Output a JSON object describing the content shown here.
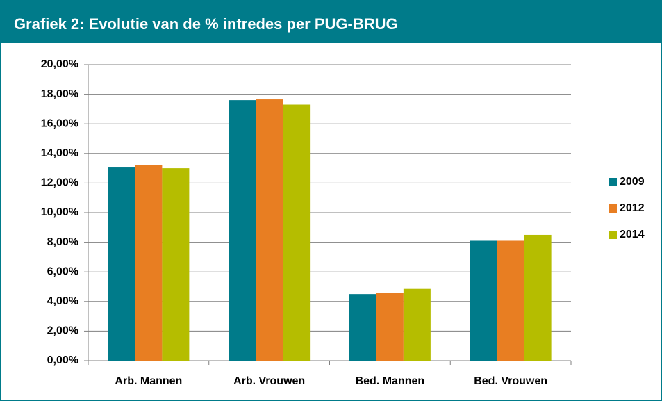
{
  "chart_data": {
    "type": "bar",
    "title": "Grafiek 2: Evolutie van de % intredes per PUG-BRUG",
    "categories": [
      "Arb. Mannen",
      "Arb. Vrouwen",
      "Bed. Mannen",
      "Bed. Vrouwen"
    ],
    "series": [
      {
        "name": "2009",
        "color": "#007b8a",
        "values": [
          13.05,
          17.6,
          4.5,
          8.1
        ]
      },
      {
        "name": "2012",
        "color": "#e87e22",
        "values": [
          13.2,
          17.65,
          4.6,
          8.1
        ]
      },
      {
        "name": "2014",
        "color": "#b5bd00",
        "values": [
          13.0,
          17.3,
          4.85,
          8.5
        ]
      }
    ],
    "ylim": [
      0,
      20
    ],
    "yticks": [
      {
        "value": 0,
        "label": "0,00%"
      },
      {
        "value": 2,
        "label": "2,00%"
      },
      {
        "value": 4,
        "label": "4,00%"
      },
      {
        "value": 6,
        "label": "6,00%"
      },
      {
        "value": 8,
        "label": "8,00%"
      },
      {
        "value": 10,
        "label": "10,00%"
      },
      {
        "value": 12,
        "label": "12,00%"
      },
      {
        "value": 14,
        "label": "14,00%"
      },
      {
        "value": 16,
        "label": "16,00%"
      },
      {
        "value": 18,
        "label": "18,00%"
      },
      {
        "value": 20,
        "label": "20,00%"
      }
    ],
    "grid": true,
    "legend": "right"
  }
}
